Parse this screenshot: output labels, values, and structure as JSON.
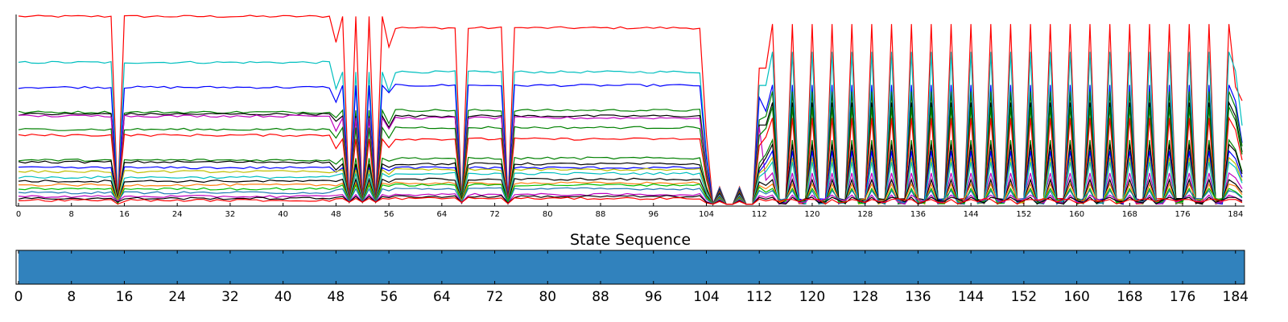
{
  "chart_data": [
    {
      "type": "line",
      "title": "",
      "xlabel": "",
      "ylabel": "",
      "xlim": [
        0,
        185
      ],
      "ylim": [
        0,
        1
      ],
      "x_ticks": [
        0,
        8,
        16,
        24,
        32,
        40,
        48,
        56,
        64,
        72,
        80,
        88,
        96,
        104,
        112,
        120,
        128,
        136,
        144,
        152,
        160,
        168,
        176,
        184
      ],
      "grid": false,
      "legend": "none",
      "series_colors": [
        "#ff0000",
        "#00bfbf",
        "#0000ff",
        "#008000",
        "#000000",
        "#bf00bf",
        "#bfbf00",
        "#00bf00",
        "#ff7f0e",
        "#1f77b4"
      ],
      "series": [
        {
          "color": "#ff0000",
          "levels": [
            0.99,
            0.93,
            0.92,
            0.62
          ],
          "spike": true
        },
        {
          "color": "#00bfbf",
          "levels": [
            0.75,
            0.7,
            0.71,
            0.7
          ],
          "spike": false
        },
        {
          "color": "#0000ff",
          "levels": [
            0.62,
            0.63,
            0.63,
            0.55
          ],
          "spike": false
        },
        {
          "color": "#008000",
          "levels": [
            0.49,
            0.5,
            0.51,
            0.52
          ],
          "spike": false
        },
        {
          "color": "#000000",
          "levels": [
            0.48,
            0.47,
            0.48,
            0.47
          ],
          "spike": false
        },
        {
          "color": "#bf00bf",
          "levels": [
            0.47,
            0.46,
            0.47,
            0.15
          ],
          "spike": false
        },
        {
          "color": "#008000",
          "levels": [
            0.4,
            0.41,
            0.42,
            0.45
          ],
          "spike": false
        },
        {
          "color": "#ff0000",
          "levels": [
            0.37,
            0.35,
            0.36,
            0.4
          ],
          "spike": false
        },
        {
          "color": "#008000",
          "levels": [
            0.24,
            0.25,
            0.25,
            0.3
          ],
          "spike": false
        },
        {
          "color": "#000000",
          "levels": [
            0.23,
            0.22,
            0.23,
            0.28
          ],
          "spike": false
        },
        {
          "color": "#0000ff",
          "levels": [
            0.2,
            0.2,
            0.21,
            0.25
          ],
          "spike": false
        },
        {
          "color": "#bfbf00",
          "levels": [
            0.18,
            0.19,
            0.2,
            0.22
          ],
          "spike": false
        },
        {
          "color": "#00bfbf",
          "levels": [
            0.15,
            0.17,
            0.18,
            0.2
          ],
          "spike": false
        },
        {
          "color": "#000000",
          "levels": [
            0.13,
            0.14,
            0.15,
            0.12
          ],
          "spike": false
        },
        {
          "color": "#ff7f0e",
          "levels": [
            0.11,
            0.12,
            0.12,
            0.1
          ],
          "spike": false
        },
        {
          "color": "#00bf00",
          "levels": [
            0.09,
            0.11,
            0.1,
            0.08
          ],
          "spike": false
        },
        {
          "color": "#1f77b4",
          "levels": [
            0.07,
            0.09,
            0.08,
            0.07
          ],
          "spike": false
        },
        {
          "color": "#bf00bf",
          "levels": [
            0.05,
            0.06,
            0.06,
            0.05
          ],
          "spike": false
        },
        {
          "color": "#000000",
          "levels": [
            0.04,
            0.05,
            0.04,
            0.04
          ],
          "spike": false
        },
        {
          "color": "#ff0000",
          "levels": [
            0.03,
            0.04,
            0.03,
            0.03
          ],
          "spike": false
        }
      ],
      "dips": [
        15,
        67,
        74
      ],
      "oscillation_ranges": [
        [
          49,
          55
        ],
        [
          114,
          183
        ]
      ],
      "near_zero_range": [
        104,
        112
      ]
    },
    {
      "type": "heatmap",
      "title": "State Sequence",
      "xlim": [
        0,
        185
      ],
      "x_ticks": [
        0,
        8,
        16,
        24,
        32,
        40,
        48,
        56,
        64,
        72,
        80,
        88,
        96,
        104,
        112,
        120,
        128,
        136,
        144,
        152,
        160,
        168,
        176,
        184
      ],
      "states": [
        {
          "start": 0,
          "end": 185,
          "color": "#3182bd"
        }
      ]
    }
  ]
}
